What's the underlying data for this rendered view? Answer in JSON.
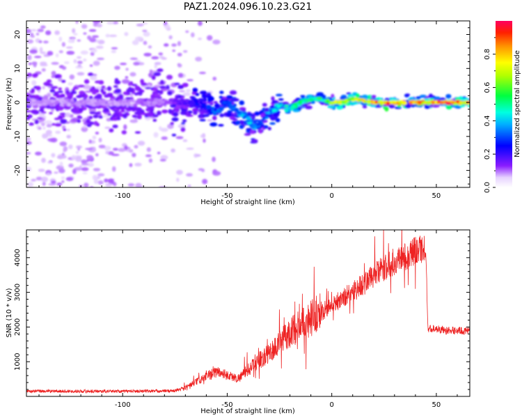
{
  "chart_data": [
    {
      "type": "heatmap",
      "title": "PAZ1.2024.096.10.23.G21",
      "xlabel": "Height of straight line (km)",
      "ylabel": "Frequency (Hz)",
      "xlim": [
        -146,
        66
      ],
      "ylim": [
        -25,
        24
      ],
      "xticks": [
        -100,
        -50,
        0,
        50
      ],
      "yticks": [
        -20,
        -10,
        0,
        10,
        20
      ],
      "colorbar": {
        "label": "Normalized spectral amplitude",
        "range": [
          0,
          1
        ],
        "ticks": [
          0.0,
          0.2,
          0.4,
          0.6,
          0.8
        ],
        "colormap": "gist_rainbow_r",
        "colors": [
          "#ffffff",
          "#7f00ff",
          "#0000ff",
          "#00ffff",
          "#00ff00",
          "#ffff00",
          "#ff8000",
          "#ff0040"
        ]
      },
      "center_frequency_track": {
        "x": [
          -146,
          -120,
          -100,
          -80,
          -70,
          -60,
          -55,
          -50,
          -45,
          -40,
          -37,
          -34,
          -30,
          -25,
          -20,
          -15,
          -10,
          -5,
          0,
          5,
          10,
          20,
          30,
          40,
          50,
          66
        ],
        "y": [
          0,
          0,
          0,
          0,
          0,
          -1,
          -3,
          0,
          -3,
          -5,
          -7,
          -6,
          -3,
          -1,
          -2,
          0,
          1,
          1,
          0,
          0,
          1,
          0,
          0,
          0,
          0,
          0
        ],
        "amplitude": [
          0.1,
          0.1,
          0.1,
          0.12,
          0.2,
          0.3,
          0.35,
          0.3,
          0.4,
          0.45,
          0.4,
          0.35,
          0.4,
          0.45,
          0.5,
          0.55,
          0.55,
          0.6,
          0.7,
          0.75,
          0.8,
          0.9,
          0.92,
          0.95,
          0.95,
          0.95
        ]
      }
    },
    {
      "type": "line",
      "xlabel": "Height of straight line (km)",
      "ylabel": "SNR (10 * v/v)",
      "xlim": [
        -146,
        66
      ],
      "ylim": [
        0,
        4800
      ],
      "xticks": [
        -100,
        -50,
        0,
        50
      ],
      "yticks": [
        1000,
        2000,
        3000,
        4000
      ],
      "color": "#ee2222",
      "series": [
        {
          "x": [
            -146,
            -130,
            -110,
            -90,
            -75,
            -70,
            -65,
            -60,
            -55,
            -50,
            -45,
            -40,
            -35,
            -30,
            -25,
            -20,
            -15,
            -10,
            -5,
            0,
            5,
            10,
            15,
            20,
            25,
            30,
            35,
            40,
            44,
            45,
            46,
            50,
            55,
            60,
            66
          ],
          "y": [
            150,
            150,
            150,
            150,
            160,
            250,
            400,
            550,
            700,
            600,
            500,
            750,
            1000,
            1200,
            1500,
            1800,
            2000,
            2200,
            2400,
            2600,
            2800,
            3000,
            3200,
            3450,
            3650,
            3850,
            4000,
            4150,
            4250,
            3800,
            1950,
            1950,
            1900,
            1900,
            1880
          ]
        }
      ]
    }
  ]
}
